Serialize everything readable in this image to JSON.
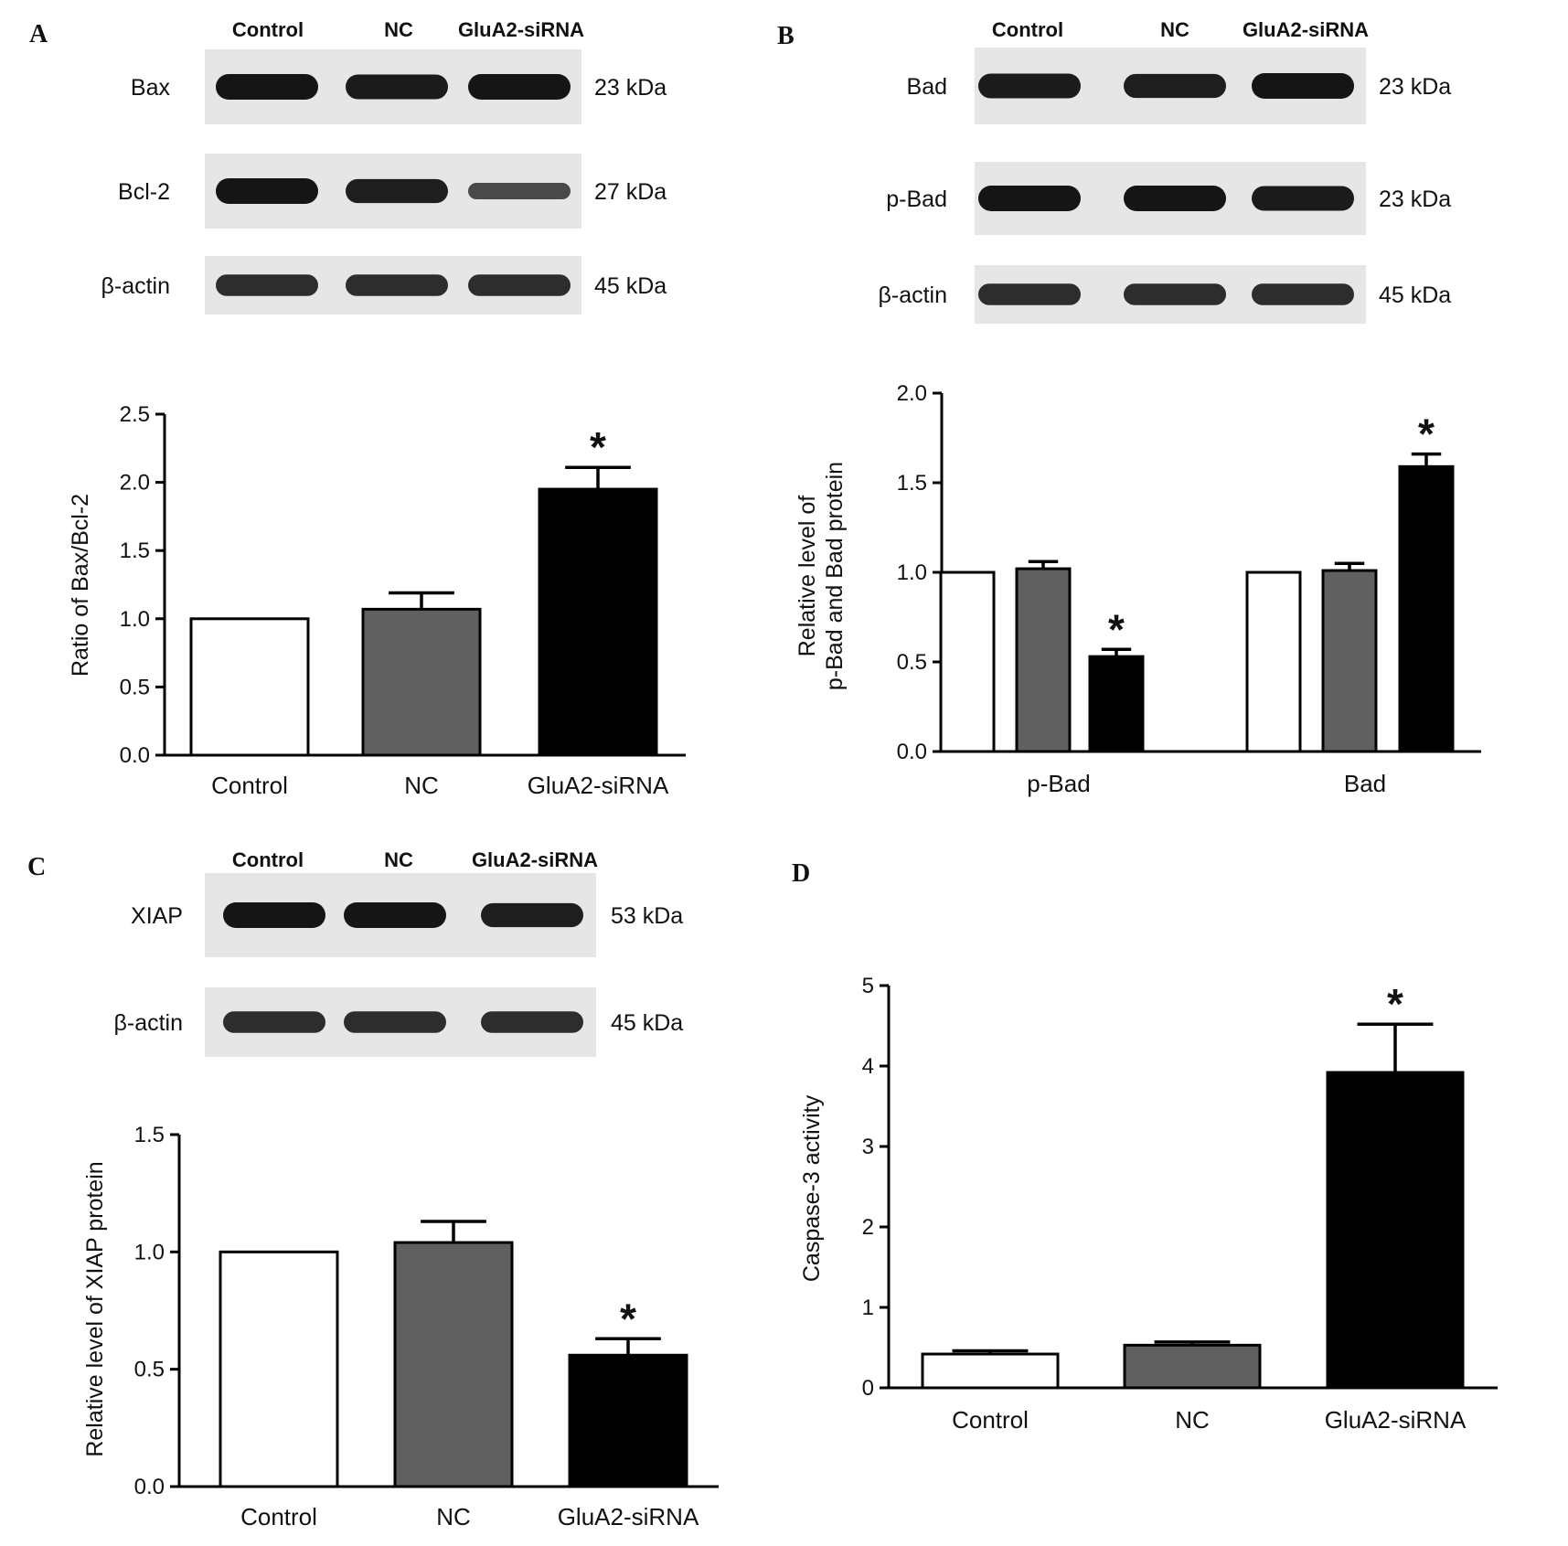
{
  "colors": {
    "control": "#ffffff",
    "nc": "#606060",
    "sirna": "#000000",
    "axis": "#000000",
    "blot_bg": "#e6e6e6",
    "band": "#151515"
  },
  "panels": [
    {
      "letter": "A",
      "blot": {
        "lanes": [
          "Control",
          "NC",
          "GluA2-siRNA"
        ],
        "rows": [
          {
            "label": "Bax",
            "kda": "23 kDa",
            "band_intensity": [
              1.0,
              0.95,
              1.0
            ]
          },
          {
            "label": "Bcl-2",
            "kda": "27 kDa",
            "band_intensity": [
              1.0,
              0.9,
              0.45
            ]
          },
          {
            "label": "β-actin",
            "kda": "45 kDa",
            "band_intensity": [
              0.75,
              0.75,
              0.75
            ]
          }
        ]
      }
    },
    {
      "letter": "B",
      "blot": {
        "lanes": [
          "Control",
          "NC",
          "GluA2-siRNA"
        ],
        "rows": [
          {
            "label": "Bad",
            "kda": "23 kDa",
            "band_intensity": [
              0.95,
              0.9,
              1.0
            ]
          },
          {
            "label": "p-Bad",
            "kda": "23 kDa",
            "band_intensity": [
              1.0,
              1.0,
              0.95
            ]
          },
          {
            "label": "β-actin",
            "kda": "45 kDa",
            "band_intensity": [
              0.75,
              0.75,
              0.75
            ]
          }
        ]
      }
    },
    {
      "letter": "C",
      "blot": {
        "lanes": [
          "Control",
          "NC",
          "GluA2-siRNA"
        ],
        "rows": [
          {
            "label": "XIAP",
            "kda": "53 kDa",
            "band_intensity": [
              1.0,
              1.0,
              0.9
            ]
          },
          {
            "label": "β-actin",
            "kda": "45 kDa",
            "band_intensity": [
              0.75,
              0.75,
              0.75
            ]
          }
        ]
      }
    },
    {
      "letter": "D"
    }
  ],
  "chart_data": [
    {
      "panel": "A",
      "type": "bar",
      "categories": [
        "Control",
        "NC",
        "GluA2-siRNA"
      ],
      "values": [
        1.0,
        1.07,
        1.95
      ],
      "errors": [
        0,
        0.12,
        0.16
      ],
      "significance": [
        "",
        "",
        "*"
      ],
      "ylabel": "Ratio of Bax/Bcl-2",
      "ylim": [
        0,
        2.5
      ],
      "yticks": [
        "0.0",
        "0.5",
        "1.0",
        "1.5",
        "2.0",
        "2.5"
      ]
    },
    {
      "panel": "B",
      "type": "bar",
      "categories": [
        "p-Bad",
        "Bad"
      ],
      "series": [
        {
          "values": [
            1.0,
            1.0
          ],
          "errors": [
            0,
            0
          ],
          "significance": [
            "",
            ""
          ]
        },
        {
          "values": [
            1.02,
            1.01
          ],
          "errors": [
            0.04,
            0.04
          ],
          "significance": [
            "",
            ""
          ]
        },
        {
          "values": [
            0.53,
            1.59
          ],
          "errors": [
            0.04,
            0.07
          ],
          "significance": [
            "*",
            "*"
          ]
        }
      ],
      "ylabel": [
        "Relative level of",
        "p-Bad and Bad protein"
      ],
      "ylim": [
        0,
        2.0
      ],
      "yticks": [
        "0.0",
        "0.5",
        "1.0",
        "1.5",
        "2.0"
      ]
    },
    {
      "panel": "C",
      "type": "bar",
      "categories": [
        "Control",
        "NC",
        "GluA2-siRNA"
      ],
      "values": [
        1.0,
        1.04,
        0.56
      ],
      "errors": [
        0,
        0.09,
        0.07
      ],
      "significance": [
        "",
        "",
        "*"
      ],
      "ylabel": "Relative level of  XIAP protein",
      "ylim": [
        0,
        1.5
      ],
      "yticks": [
        "0.0",
        "0.5",
        "1.0",
        "1.5"
      ]
    },
    {
      "panel": "D",
      "type": "bar",
      "categories": [
        "Control",
        "NC",
        "GluA2-siRNA"
      ],
      "values": [
        0.42,
        0.53,
        3.92
      ],
      "errors": [
        0.04,
        0.04,
        0.6
      ],
      "significance": [
        "",
        "",
        "*"
      ],
      "ylabel": "Caspase-3 activity",
      "ylim": [
        0,
        5
      ],
      "yticks": [
        "0",
        "1",
        "2",
        "3",
        "4",
        "5"
      ]
    }
  ]
}
